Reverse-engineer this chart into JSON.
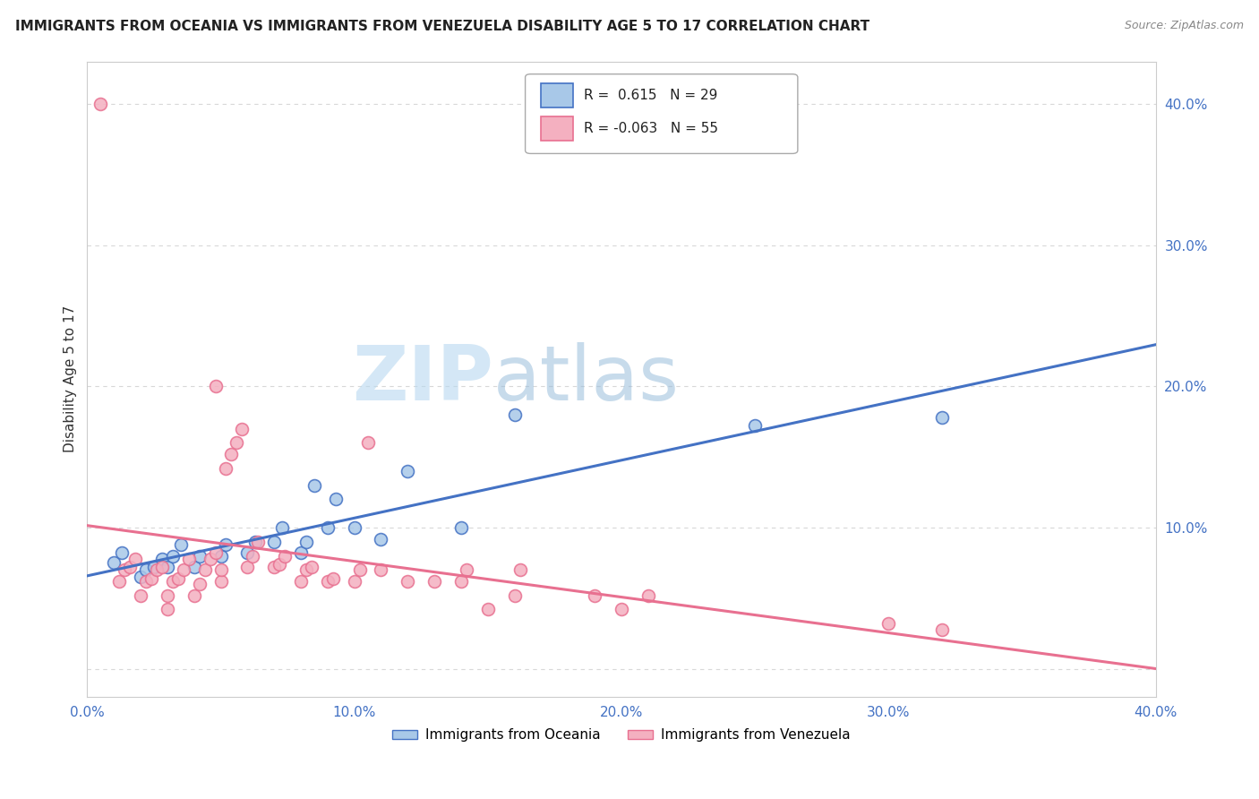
{
  "title": "IMMIGRANTS FROM OCEANIA VS IMMIGRANTS FROM VENEZUELA DISABILITY AGE 5 TO 17 CORRELATION CHART",
  "source": "Source: ZipAtlas.com",
  "ylabel": "Disability Age 5 to 17",
  "xlim": [
    0.0,
    0.4
  ],
  "ylim": [
    -0.02,
    0.43
  ],
  "xticks": [
    0.0,
    0.1,
    0.2,
    0.3,
    0.4
  ],
  "yticks": [
    0.0,
    0.1,
    0.2,
    0.3,
    0.4
  ],
  "R_oceania": 0.615,
  "N_oceania": 29,
  "R_venezuela": -0.063,
  "N_venezuela": 55,
  "oceania_color": "#a8c8e8",
  "venezuela_color": "#f4b0c0",
  "line_oceania_color": "#4472c4",
  "line_venezuela_color": "#e87090",
  "background_color": "#ffffff",
  "grid_color": "#d8d8d8",
  "watermark_zip": "ZIP",
  "watermark_atlas": "atlas",
  "oceania_scatter_x": [
    0.01,
    0.013,
    0.02,
    0.022,
    0.025,
    0.028,
    0.03,
    0.032,
    0.035,
    0.04,
    0.042,
    0.05,
    0.052,
    0.06,
    0.063,
    0.07,
    0.073,
    0.08,
    0.082,
    0.085,
    0.09,
    0.093,
    0.1,
    0.11,
    0.12,
    0.14,
    0.16,
    0.25,
    0.32
  ],
  "oceania_scatter_y": [
    0.075,
    0.082,
    0.065,
    0.07,
    0.072,
    0.078,
    0.072,
    0.08,
    0.088,
    0.072,
    0.08,
    0.08,
    0.088,
    0.082,
    0.09,
    0.09,
    0.1,
    0.082,
    0.09,
    0.13,
    0.1,
    0.12,
    0.1,
    0.092,
    0.14,
    0.1,
    0.18,
    0.172,
    0.178
  ],
  "venezuela_scatter_x": [
    0.048,
    0.012,
    0.014,
    0.016,
    0.018,
    0.02,
    0.022,
    0.024,
    0.026,
    0.028,
    0.03,
    0.03,
    0.032,
    0.034,
    0.036,
    0.038,
    0.04,
    0.042,
    0.044,
    0.046,
    0.048,
    0.05,
    0.05,
    0.052,
    0.054,
    0.056,
    0.058,
    0.06,
    0.062,
    0.064,
    0.07,
    0.072,
    0.074,
    0.08,
    0.082,
    0.084,
    0.09,
    0.092,
    0.1,
    0.102,
    0.105,
    0.11,
    0.12,
    0.13,
    0.14,
    0.142,
    0.15,
    0.16,
    0.162,
    0.19,
    0.2,
    0.21,
    0.3,
    0.32,
    0.005
  ],
  "venezuela_scatter_y": [
    0.2,
    0.062,
    0.07,
    0.072,
    0.078,
    0.052,
    0.062,
    0.064,
    0.07,
    0.072,
    0.042,
    0.052,
    0.062,
    0.064,
    0.07,
    0.078,
    0.052,
    0.06,
    0.07,
    0.078,
    0.082,
    0.062,
    0.07,
    0.142,
    0.152,
    0.16,
    0.17,
    0.072,
    0.08,
    0.09,
    0.072,
    0.074,
    0.08,
    0.062,
    0.07,
    0.072,
    0.062,
    0.064,
    0.062,
    0.07,
    0.16,
    0.07,
    0.062,
    0.062,
    0.062,
    0.07,
    0.042,
    0.052,
    0.07,
    0.052,
    0.042,
    0.052,
    0.032,
    0.028,
    0.4
  ]
}
